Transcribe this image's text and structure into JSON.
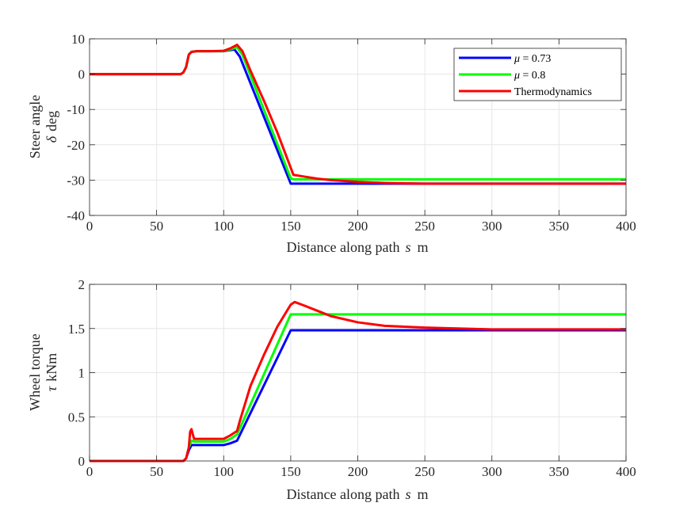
{
  "chart_data": [
    {
      "type": "line",
      "id": "steer",
      "xlabel": "Distance along path",
      "xlabel_var": "s",
      "xlabel_unit": "m",
      "ylabel_line1": "Steer angle",
      "ylabel_var": "δ",
      "ylabel_unit": "deg",
      "xlim": [
        0,
        400
      ],
      "ylim": [
        -40,
        10
      ],
      "xticks": [
        0,
        50,
        100,
        150,
        200,
        250,
        300,
        350,
        400
      ],
      "yticks": [
        -40,
        -30,
        -20,
        -10,
        0,
        10
      ],
      "grid": true,
      "legend": {
        "placement": "top-right",
        "entries": [
          {
            "series": 0,
            "var": "μ",
            "rest": " = 0.73"
          },
          {
            "series": 1,
            "var": "μ",
            "rest": " = 0.8"
          },
          {
            "series": 2,
            "var": "",
            "rest": "Thermodynamics"
          }
        ]
      },
      "series": [
        {
          "name": "μ = 0.73",
          "color": "#0000ff",
          "x": [
            0,
            68,
            70,
            72,
            74,
            76,
            80,
            90,
            100,
            105,
            108,
            112,
            150,
            152,
            400
          ],
          "y": [
            0,
            0,
            0.5,
            2,
            5.5,
            6.3,
            6.5,
            6.5,
            6.5,
            6.8,
            7.0,
            5.0,
            -31,
            -31,
            -31
          ]
        },
        {
          "name": "μ = 0.8",
          "color": "#00ff00",
          "x": [
            0,
            68,
            70,
            72,
            74,
            76,
            80,
            90,
            100,
            105,
            110,
            114,
            150,
            152,
            400
          ],
          "y": [
            0,
            0,
            0.5,
            2,
            5.5,
            6.3,
            6.5,
            6.5,
            6.5,
            7.0,
            7.6,
            5.5,
            -29.5,
            -29.8,
            -29.8
          ]
        },
        {
          "name": "Thermodynamics",
          "color": "#ff0000",
          "x": [
            0,
            68,
            70,
            72,
            74,
            76,
            80,
            90,
            100,
            105,
            110,
            114,
            120,
            130,
            140,
            152,
            160,
            170,
            180,
            200,
            220,
            250,
            300,
            350,
            400
          ],
          "y": [
            0,
            0,
            0.5,
            2,
            5.5,
            6.3,
            6.5,
            6.5,
            6.6,
            7.3,
            8.3,
            6.5,
            1.0,
            -7.5,
            -16.5,
            -28.5,
            -29.0,
            -29.6,
            -30.0,
            -30.5,
            -30.8,
            -31.0,
            -31.0,
            -31.0,
            -31.0
          ]
        }
      ]
    },
    {
      "type": "line",
      "id": "torque",
      "xlabel": "Distance along path",
      "xlabel_var": "s",
      "xlabel_unit": "m",
      "ylabel_line1": "Wheel torque",
      "ylabel_var": "τ",
      "ylabel_unit": "kNm",
      "xlim": [
        0,
        400
      ],
      "ylim": [
        0,
        2
      ],
      "xticks": [
        0,
        50,
        100,
        150,
        200,
        250,
        300,
        350,
        400
      ],
      "yticks": [
        0,
        0.5,
        1,
        1.5,
        2
      ],
      "grid": true,
      "series": [
        {
          "name": "μ = 0.73",
          "color": "#0000ff",
          "x": [
            0,
            70,
            72,
            74,
            76,
            78,
            100,
            105,
            110,
            150,
            152,
            400
          ],
          "y": [
            0,
            0,
            0.03,
            0.12,
            0.18,
            0.18,
            0.18,
            0.2,
            0.23,
            1.48,
            1.48,
            1.48
          ]
        },
        {
          "name": "μ = 0.8",
          "color": "#00ff00",
          "x": [
            0,
            70,
            72,
            74,
            76,
            78,
            100,
            105,
            110,
            150,
            152,
            400
          ],
          "y": [
            0,
            0,
            0.03,
            0.15,
            0.23,
            0.22,
            0.22,
            0.25,
            0.3,
            1.66,
            1.66,
            1.66
          ]
        },
        {
          "name": "Thermodynamics",
          "color": "#ff0000",
          "x": [
            0,
            70,
            72,
            74,
            75,
            76,
            77,
            78,
            80,
            100,
            105,
            110,
            112,
            115,
            120,
            130,
            140,
            150,
            153,
            160,
            170,
            180,
            200,
            220,
            250,
            300,
            350,
            400
          ],
          "y": [
            0,
            0,
            0.03,
            0.15,
            0.33,
            0.36,
            0.3,
            0.25,
            0.25,
            0.25,
            0.29,
            0.34,
            0.45,
            0.6,
            0.85,
            1.2,
            1.52,
            1.77,
            1.8,
            1.76,
            1.7,
            1.64,
            1.57,
            1.53,
            1.51,
            1.49,
            1.49,
            1.49
          ]
        }
      ]
    }
  ]
}
